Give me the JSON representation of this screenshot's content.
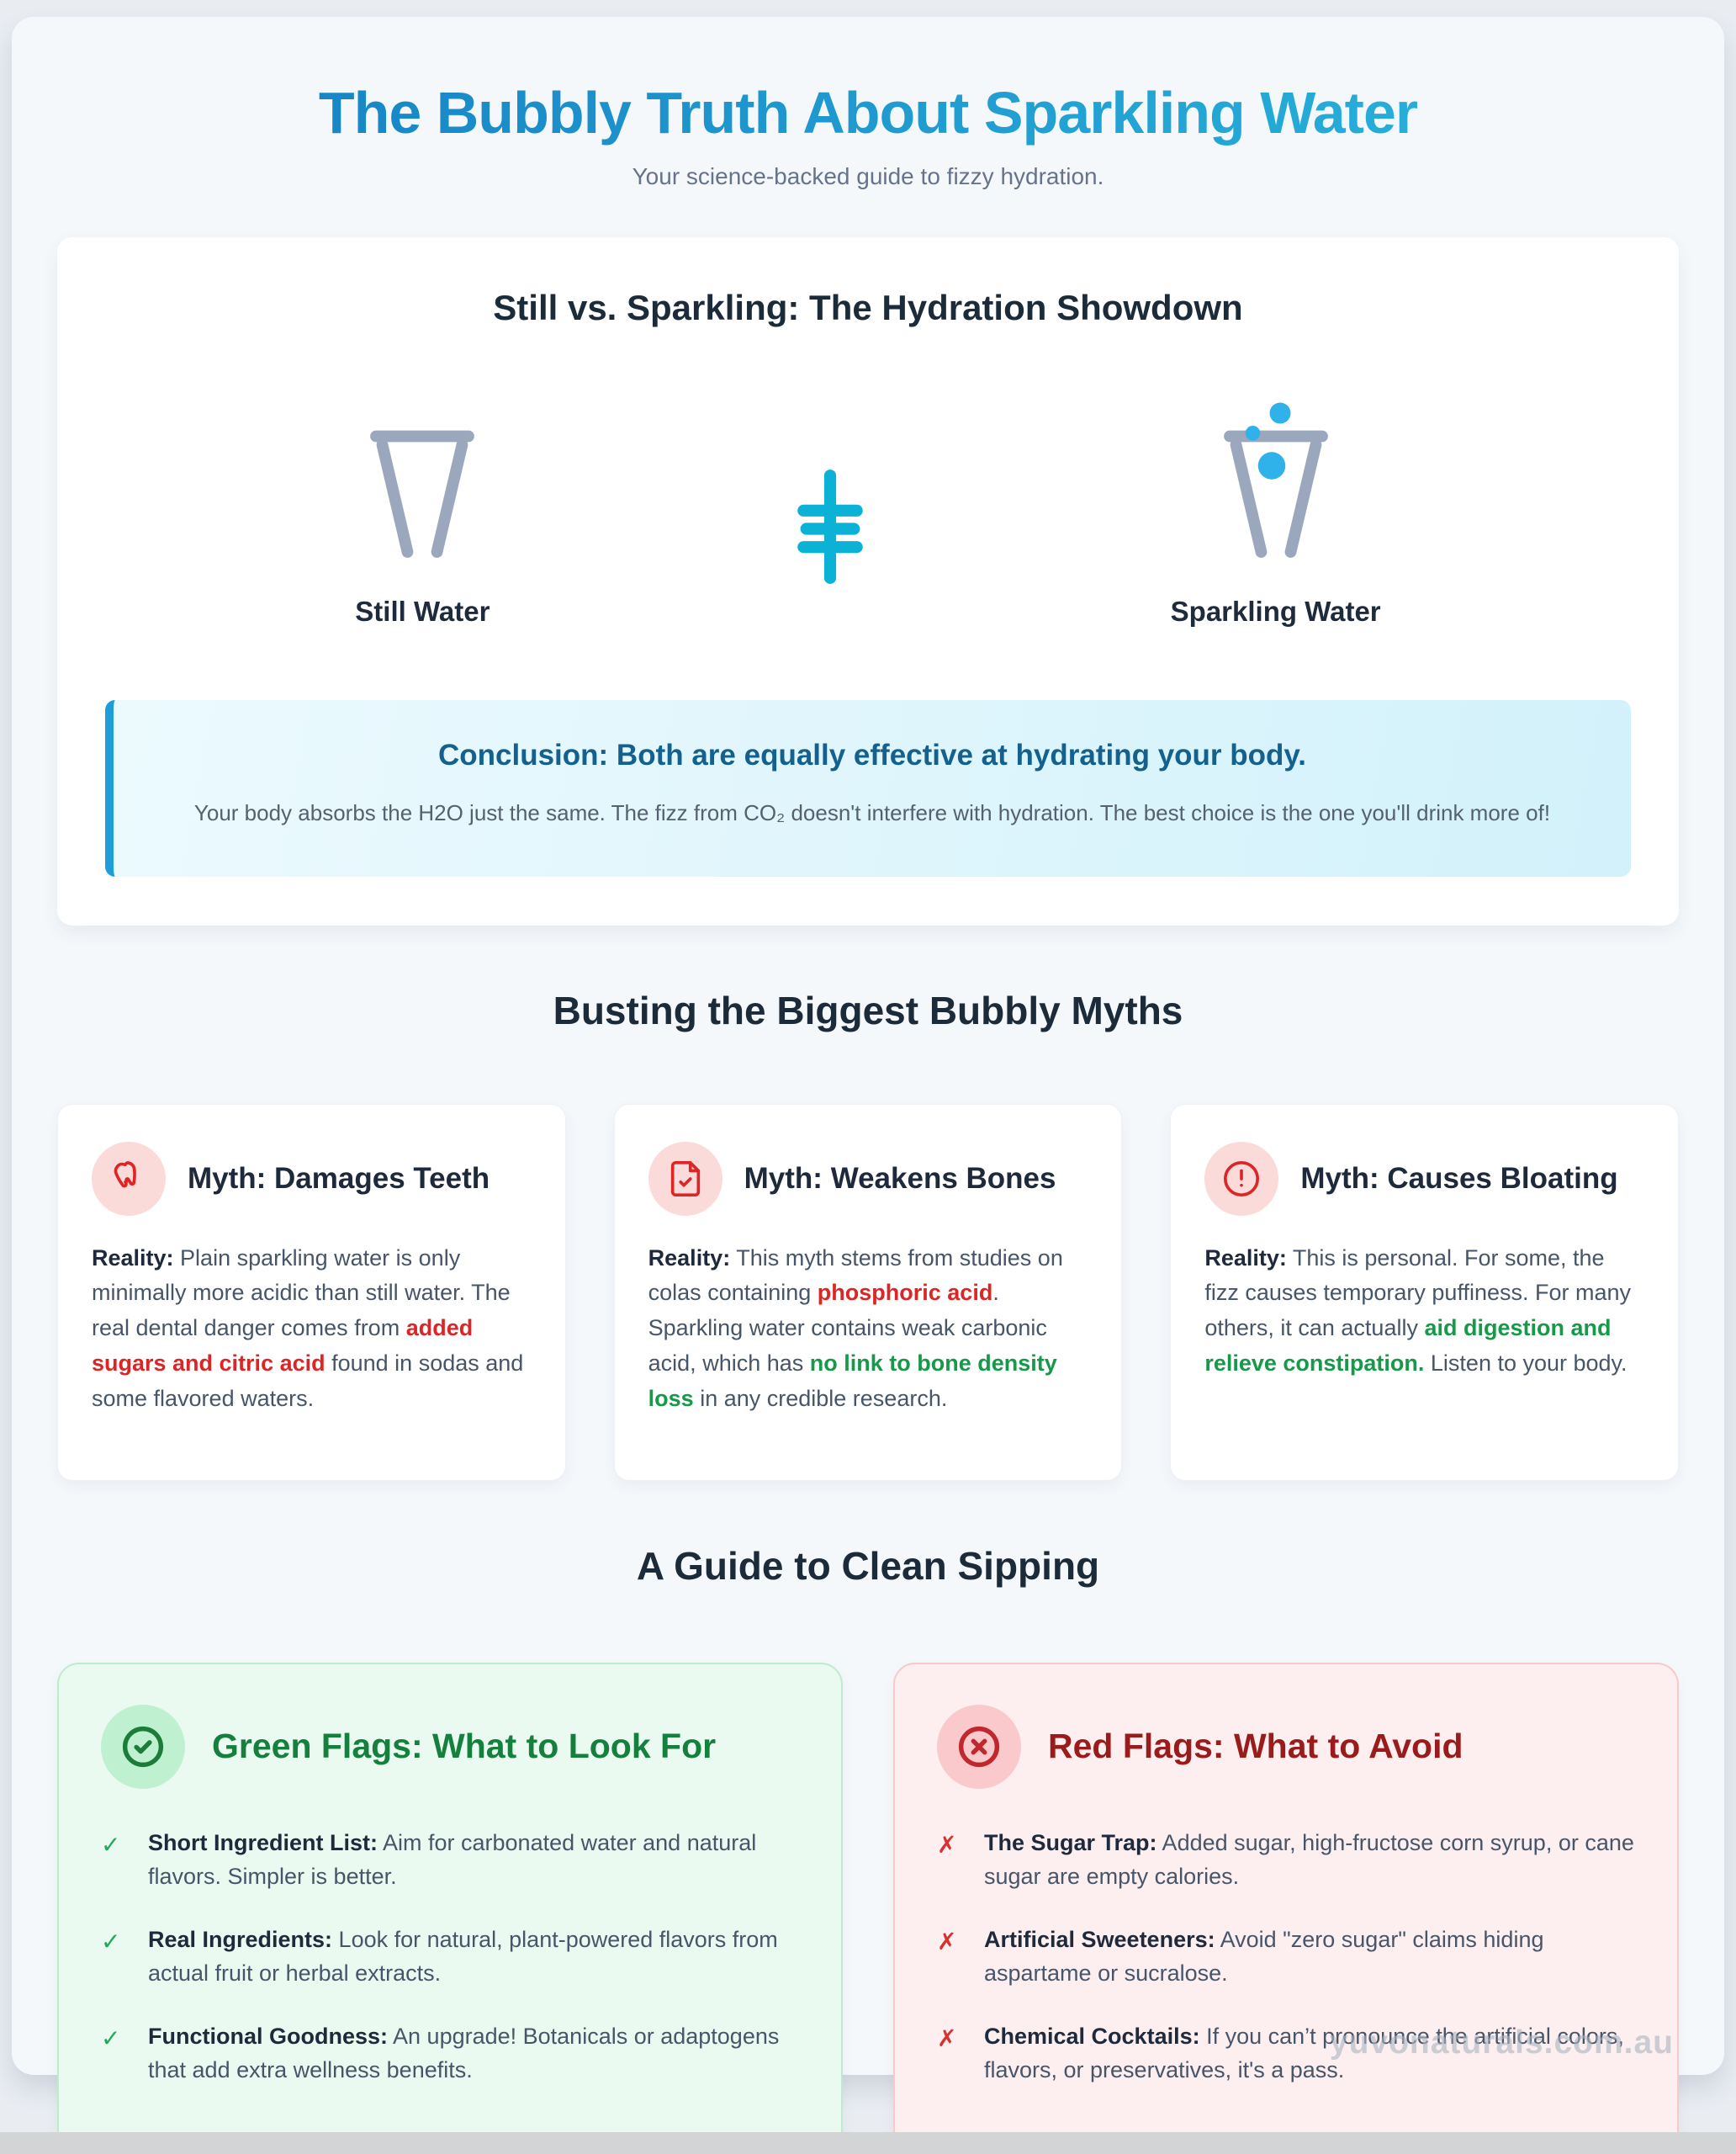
{
  "page": {
    "title": "The Bubbly Truth About Sparkling Water",
    "subtitle": "Your science-backed guide to fizzy hydration.",
    "watermark": "yuvonaturals.com.au"
  },
  "colors": {
    "title_gradient_start": "#147dc2",
    "title_gradient_end": "#2ab7dd",
    "heading_navy": "#1c2b3a",
    "body_slate": "#475569",
    "accent_red": "#dc2626",
    "accent_green": "#169a4a",
    "conclusion_title_blue": "#14608f",
    "conclusion_border_blue": "#1e9ed9",
    "green_flag_title": "#15803d",
    "red_flag_title": "#991b1b",
    "glass_gray": "#9aa7bd",
    "bubble_blue": "#2fb1ea",
    "equals_teal": "#0cb2d6"
  },
  "showdown": {
    "heading": "Still vs. Sparkling: The Hydration Showdown",
    "still": {
      "label": "Still Water",
      "icon": "still-glass-icon"
    },
    "equals_icon": "equals-icon",
    "sparkling": {
      "label": "Sparkling Water",
      "icon": "sparkling-glass-icon"
    },
    "conclusion": {
      "title": "Conclusion: Both are equally effective at hydrating your body.",
      "body": "Your body absorbs the H2O just the same. The fizz from CO₂ doesn't interfere with hydration. The best choice is the one you'll drink more of!"
    }
  },
  "myths": {
    "heading": "Busting the Biggest Bubbly Myths",
    "cards": [
      {
        "icon": "tooth-icon",
        "title": "Myth: Damages Teeth",
        "segments": [
          {
            "t": "Reality:",
            "s": "label"
          },
          {
            "t": " Plain sparkling water is only minimally more acidic than still water. The real dental danger comes from ",
            "s": "n"
          },
          {
            "t": "added sugars and citric acid",
            "s": "r"
          },
          {
            "t": " found in sodas and some flavored waters.",
            "s": "n"
          }
        ]
      },
      {
        "icon": "file-check-icon",
        "title": "Myth: Weakens Bones",
        "segments": [
          {
            "t": "Reality:",
            "s": "label"
          },
          {
            "t": " This myth stems from studies on colas containing ",
            "s": "n"
          },
          {
            "t": "phosphoric acid",
            "s": "r"
          },
          {
            "t": ". Sparkling water contains weak carbonic acid, which has ",
            "s": "n"
          },
          {
            "t": "no link to bone density loss",
            "s": "g"
          },
          {
            "t": " in any credible research.",
            "s": "n"
          }
        ]
      },
      {
        "icon": "alert-circle-icon",
        "title": "Myth: Causes Bloating",
        "segments": [
          {
            "t": "Reality:",
            "s": "label"
          },
          {
            "t": " This is personal. For some, the fizz causes temporary puffiness. For many others, it can actually ",
            "s": "n"
          },
          {
            "t": "aid digestion and relieve constipation.",
            "s": "g"
          },
          {
            "t": " Listen to your body.",
            "s": "n"
          }
        ]
      }
    ]
  },
  "guide": {
    "heading": "A Guide to Clean Sipping",
    "green": {
      "icon": "check-circle-icon",
      "title": "Green Flags: What to Look For",
      "bullet": "✓",
      "items": [
        {
          "label": "Short Ingredient List:",
          "text": " Aim for carbonated water and natural flavors. Simpler is better."
        },
        {
          "label": "Real Ingredients:",
          "text": " Look for natural, plant-powered flavors from actual fruit or herbal extracts."
        },
        {
          "label": "Functional Goodness:",
          "text": " An upgrade! Botanicals or adaptogens that add extra wellness benefits."
        }
      ]
    },
    "red": {
      "icon": "x-circle-icon",
      "title": "Red Flags: What to Avoid",
      "bullet": "✗",
      "items": [
        {
          "label": "The Sugar Trap:",
          "text": " Added sugar, high-fructose corn syrup, or cane sugar are empty calories."
        },
        {
          "label": "Artificial Sweeteners:",
          "text": " Avoid \"zero sugar\" claims hiding aspartame or sucralose."
        },
        {
          "label": "Chemical Cocktails:",
          "text": " If you can’t pronounce the artificial colors, flavors, or preservatives, it's a pass."
        }
      ]
    }
  }
}
